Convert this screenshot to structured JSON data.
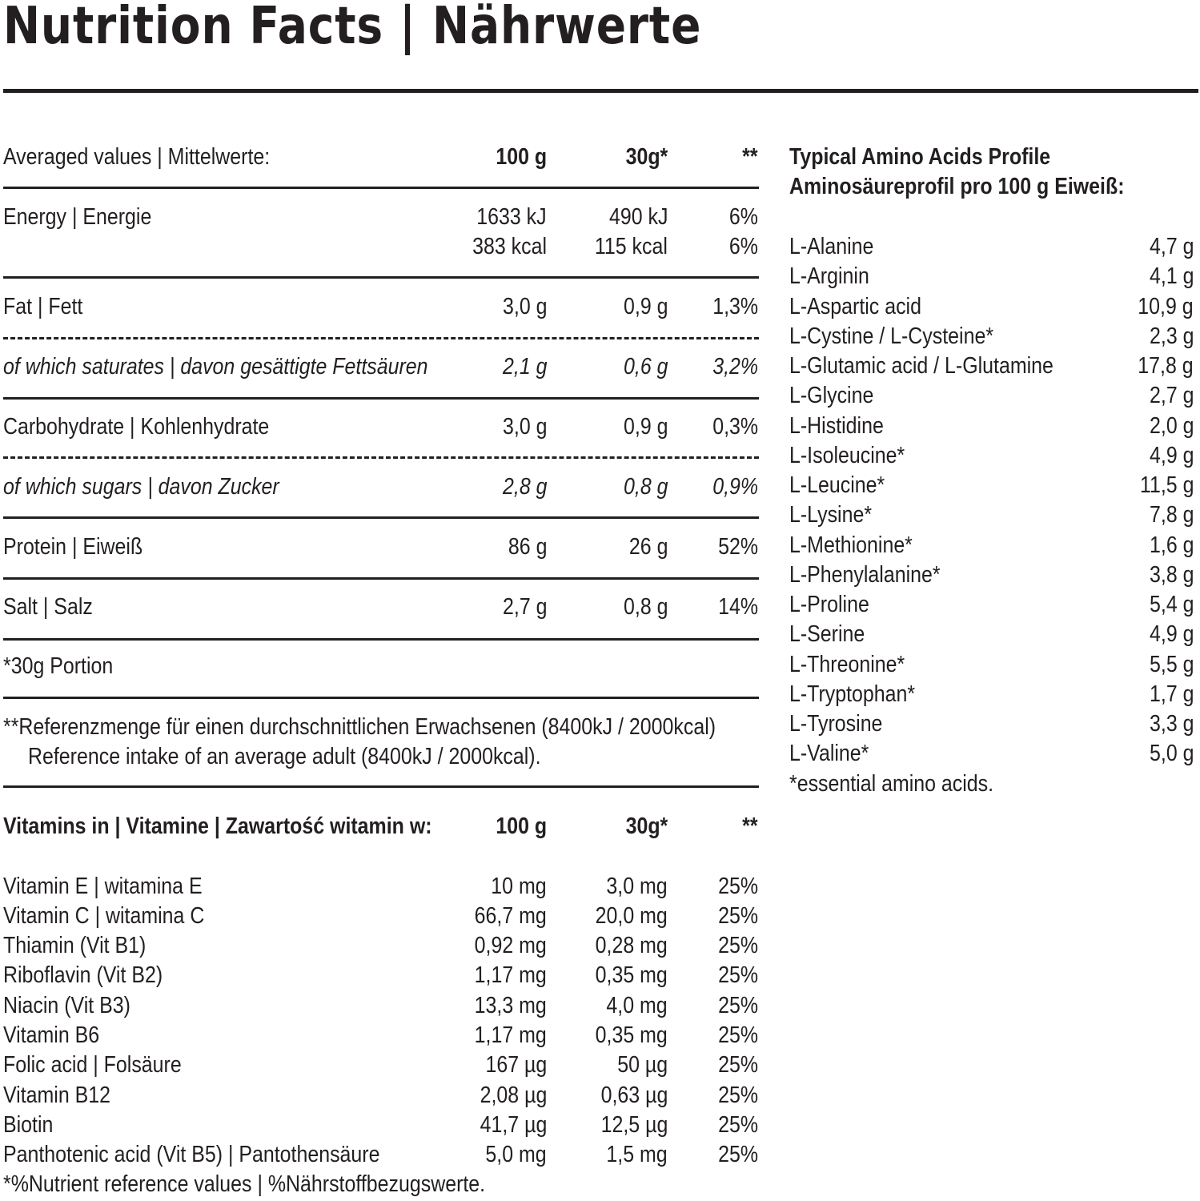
{
  "title": "Nutrition Facts  |  Nährwerte",
  "nutrition": {
    "header": {
      "label": "Averaged values  |  Mittelwerte:",
      "col1": "100 g",
      "col2": "30g*",
      "col3": "**"
    },
    "energy": {
      "name": "Energy  |  Energie",
      "kj": [
        "1633 kJ",
        "490 kJ",
        "6%"
      ],
      "kcal": [
        "383 kcal",
        "115 kcal",
        "6%"
      ]
    },
    "rows": [
      {
        "name": "Fat  |  Fett",
        "v1": "3,0 g",
        "v2": "0,9 g",
        "v3": "1,3%"
      },
      {
        "name": "of which saturates  |  davon gesättigte Fettsäuren",
        "v1": "2,1 g",
        "v2": "0,6 g",
        "v3": "3,2%"
      },
      {
        "name": "Carbohydrate  |  Kohlenhydrate",
        "v1": "3,0 g",
        "v2": "0,9 g",
        "v3": "0,3%"
      },
      {
        "name": "of which sugars  |  davon Zucker",
        "v1": "2,8 g",
        "v2": "0,8 g",
        "v3": "0,9%"
      },
      {
        "name": "Protein  |  Eiweiß",
        "v1": "86 g",
        "v2": "26 g",
        "v3": "52%"
      },
      {
        "name": "Salt  |  Salz",
        "v1": "2,7 g",
        "v2": "0,8 g",
        "v3": "14%"
      }
    ],
    "portion_note": "*30g Portion",
    "reference_note_1": "**Referenzmenge für einen durchschnittlichen Erwachsenen (8400kJ / 2000kcal)",
    "reference_note_2": "Reference intake of an average adult (8400kJ / 2000kcal)."
  },
  "vitamins": {
    "header": {
      "label": "Vitamins in | Vitamine | Zawartość witamin w:",
      "col1": "100 g",
      "col2": "30g*",
      "col3": "**"
    },
    "rows": [
      {
        "name": "Vitamin E | witamina E",
        "v1": "10 mg",
        "v2": "3,0 mg",
        "v3": "25%"
      },
      {
        "name": "Vitamin C | witamina C",
        "v1": "66,7 mg",
        "v2": "20,0 mg",
        "v3": "25%"
      },
      {
        "name": "Thiamin (Vit B1)",
        "v1": "0,92 mg",
        "v2": "0,28 mg",
        "v3": "25%"
      },
      {
        "name": "Riboflavin (Vit B2)",
        "v1": "1,17 mg",
        "v2": "0,35 mg",
        "v3": "25%"
      },
      {
        "name": "Niacin (Vit B3)",
        "v1": "13,3 mg",
        "v2": "4,0 mg",
        "v3": "25%"
      },
      {
        "name": "Vitamin B6",
        "v1": "1,17 mg",
        "v2": "0,35 mg",
        "v3": "25%"
      },
      {
        "name": "Folic acid | Folsäure",
        "v1": "167 µg",
        "v2": "50 µg",
        "v3": "25%"
      },
      {
        "name": "Vitamin B12",
        "v1": "2,08 µg",
        "v2": "0,63 µg",
        "v3": "25%"
      },
      {
        "name": "Biotin",
        "v1": "41,7 µg",
        "v2": "12,5 µg",
        "v3": "25%"
      },
      {
        "name": "Panthotenic acid (Vit B5) | Pantothensäure",
        "v1": "5,0 mg",
        "v2": "1,5 mg",
        "v3": "25%"
      }
    ],
    "footnote": "*%Nutrient reference values  |  %Nährstoffbezugswerte."
  },
  "amino": {
    "title_1": "Typical Amino Acids Profile",
    "title_2": "Aminosäureprofil pro 100 g Eiweiß:",
    "rows": [
      {
        "name": "L-Alanine",
        "value": "4,7 g"
      },
      {
        "name": "L-Arginin",
        "value": "4,1 g"
      },
      {
        "name": "L-Aspartic acid",
        "value": "10,9 g"
      },
      {
        "name": "L-Cystine / L-Cysteine*",
        "value": "2,3 g"
      },
      {
        "name": "L-Glutamic acid / L-Glutamine",
        "value": "17,8 g"
      },
      {
        "name": "L-Glycine",
        "value": "2,7 g"
      },
      {
        "name": "L-Histidine",
        "value": "2,0 g"
      },
      {
        "name": "L-Isoleucine*",
        "value": "4,9 g"
      },
      {
        "name": "L-Leucine*",
        "value": "11,5 g"
      },
      {
        "name": "L-Lysine*",
        "value": "7,8 g"
      },
      {
        "name": "L-Methionine*",
        "value": "1,6 g"
      },
      {
        "name": "L-Phenylalanine*",
        "value": "3,8 g"
      },
      {
        "name": "L-Proline",
        "value": "5,4 g"
      },
      {
        "name": "L-Serine",
        "value": "4,9 g"
      },
      {
        "name": "L-Threonine*",
        "value": "5,5 g"
      },
      {
        "name": "L-Tryptophan*",
        "value": "1,7 g"
      },
      {
        "name": "L-Tyrosine",
        "value": "3,3 g"
      },
      {
        "name": "L-Valine*",
        "value": "5,0 g"
      }
    ],
    "footnote": "*essential amino acids."
  }
}
